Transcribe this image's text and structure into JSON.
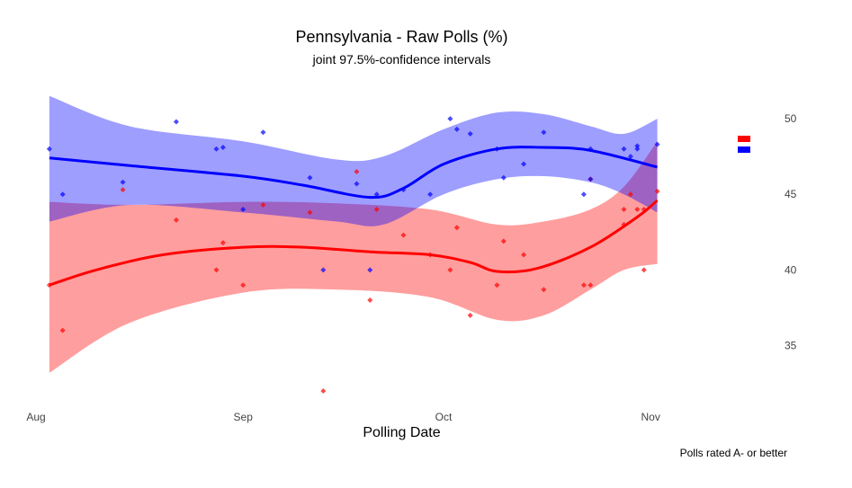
{
  "chart_data": {
    "type": "scatter",
    "title": "Pennsylvania - Raw Polls (%)",
    "subtitle": "joint 97.5%-confidence intervals",
    "xlabel": "Polling Date",
    "ylabel": "",
    "caption": "Polls rated A- or better",
    "x_ticks": [
      {
        "date": "2016-08-01",
        "label": "Aug"
      },
      {
        "date": "2016-09-01",
        "label": "Sep"
      },
      {
        "date": "2016-10-01",
        "label": "Oct"
      },
      {
        "date": "2016-11-01",
        "label": "Nov"
      }
    ],
    "xlim": [
      "2016-08-01",
      "2016-11-10"
    ],
    "y_ticks": [
      35,
      40,
      45,
      50
    ],
    "ylim": [
      32,
      52.5
    ],
    "grid": false,
    "legend_position": "right",
    "series": [
      {
        "color": "#ff0000",
        "band_color": "#ff0000",
        "points": [
          {
            "x": "2016-08-03",
            "y": 39.0
          },
          {
            "x": "2016-08-05",
            "y": 36.0
          },
          {
            "x": "2016-08-14",
            "y": 45.3
          },
          {
            "x": "2016-08-22",
            "y": 43.3
          },
          {
            "x": "2016-08-28",
            "y": 40.0
          },
          {
            "x": "2016-08-29",
            "y": 41.8
          },
          {
            "x": "2016-09-01",
            "y": 39.0
          },
          {
            "x": "2016-09-04",
            "y": 44.3
          },
          {
            "x": "2016-09-11",
            "y": 43.8
          },
          {
            "x": "2016-09-13",
            "y": 32.0
          },
          {
            "x": "2016-09-18",
            "y": 46.5
          },
          {
            "x": "2016-09-20",
            "y": 38.0
          },
          {
            "x": "2016-09-21",
            "y": 44.0
          },
          {
            "x": "2016-09-25",
            "y": 42.3
          },
          {
            "x": "2016-09-29",
            "y": 41.0
          },
          {
            "x": "2016-10-02",
            "y": 40.0
          },
          {
            "x": "2016-10-03",
            "y": 42.8
          },
          {
            "x": "2016-10-05",
            "y": 37.0
          },
          {
            "x": "2016-10-09",
            "y": 39.0
          },
          {
            "x": "2016-10-10",
            "y": 41.9
          },
          {
            "x": "2016-10-13",
            "y": 41.0
          },
          {
            "x": "2016-10-16",
            "y": 38.7
          },
          {
            "x": "2016-10-22",
            "y": 39.0
          },
          {
            "x": "2016-10-23",
            "y": 39.0
          },
          {
            "x": "2016-10-23",
            "y": 46.0
          },
          {
            "x": "2016-10-28",
            "y": 43.0
          },
          {
            "x": "2016-10-28",
            "y": 44.0
          },
          {
            "x": "2016-10-29",
            "y": 45.0
          },
          {
            "x": "2016-10-30",
            "y": 44.0
          },
          {
            "x": "2016-10-31",
            "y": 40.0
          },
          {
            "x": "2016-10-31",
            "y": 44.0
          },
          {
            "x": "2016-11-02",
            "y": 45.2
          }
        ],
        "trend": [
          {
            "x": "2016-08-03",
            "y": 39.0
          },
          {
            "x": "2016-08-10",
            "y": 40.0
          },
          {
            "x": "2016-08-20",
            "y": 41.0
          },
          {
            "x": "2016-09-01",
            "y": 41.5
          },
          {
            "x": "2016-09-10",
            "y": 41.5
          },
          {
            "x": "2016-09-20",
            "y": 41.2
          },
          {
            "x": "2016-09-29",
            "y": 41.0
          },
          {
            "x": "2016-10-05",
            "y": 40.5
          },
          {
            "x": "2016-10-09",
            "y": 39.9
          },
          {
            "x": "2016-10-15",
            "y": 40.1
          },
          {
            "x": "2016-10-23",
            "y": 41.5
          },
          {
            "x": "2016-10-30",
            "y": 43.5
          },
          {
            "x": "2016-11-02",
            "y": 44.6
          }
        ],
        "band_upper": [
          {
            "x": "2016-08-03",
            "y": 44.5
          },
          {
            "x": "2016-08-15",
            "y": 44.3
          },
          {
            "x": "2016-09-01",
            "y": 44.5
          },
          {
            "x": "2016-09-15",
            "y": 44.4
          },
          {
            "x": "2016-09-29",
            "y": 44.0
          },
          {
            "x": "2016-10-09",
            "y": 43.0
          },
          {
            "x": "2016-10-16",
            "y": 43.2
          },
          {
            "x": "2016-10-23",
            "y": 44.0
          },
          {
            "x": "2016-10-28",
            "y": 45.5
          },
          {
            "x": "2016-11-02",
            "y": 48.5
          }
        ],
        "band_lower": [
          {
            "x": "2016-08-03",
            "y": 33.2
          },
          {
            "x": "2016-08-15",
            "y": 36.5
          },
          {
            "x": "2016-09-01",
            "y": 38.5
          },
          {
            "x": "2016-09-15",
            "y": 38.7
          },
          {
            "x": "2016-09-29",
            "y": 38.2
          },
          {
            "x": "2016-10-09",
            "y": 36.7
          },
          {
            "x": "2016-10-16",
            "y": 37.0
          },
          {
            "x": "2016-10-23",
            "y": 38.7
          },
          {
            "x": "2016-10-28",
            "y": 40.0
          },
          {
            "x": "2016-11-02",
            "y": 40.4
          }
        ]
      },
      {
        "color": "#0000ff",
        "band_color": "#0000ff",
        "points": [
          {
            "x": "2016-08-03",
            "y": 48.0
          },
          {
            "x": "2016-08-05",
            "y": 45.0
          },
          {
            "x": "2016-08-14",
            "y": 45.8
          },
          {
            "x": "2016-08-22",
            "y": 49.8
          },
          {
            "x": "2016-08-28",
            "y": 48.0
          },
          {
            "x": "2016-08-29",
            "y": 48.1
          },
          {
            "x": "2016-09-01",
            "y": 44.0
          },
          {
            "x": "2016-09-04",
            "y": 49.1
          },
          {
            "x": "2016-09-11",
            "y": 46.1
          },
          {
            "x": "2016-09-13",
            "y": 40.0
          },
          {
            "x": "2016-09-18",
            "y": 45.7
          },
          {
            "x": "2016-09-20",
            "y": 40.0
          },
          {
            "x": "2016-09-21",
            "y": 45.0
          },
          {
            "x": "2016-09-25",
            "y": 45.3
          },
          {
            "x": "2016-09-29",
            "y": 45.0
          },
          {
            "x": "2016-10-02",
            "y": 50.0
          },
          {
            "x": "2016-10-03",
            "y": 49.3
          },
          {
            "x": "2016-10-05",
            "y": 49.0
          },
          {
            "x": "2016-10-09",
            "y": 48.0
          },
          {
            "x": "2016-10-10",
            "y": 46.1
          },
          {
            "x": "2016-10-13",
            "y": 47.0
          },
          {
            "x": "2016-10-16",
            "y": 49.1
          },
          {
            "x": "2016-10-22",
            "y": 45.0
          },
          {
            "x": "2016-10-23",
            "y": 48.0
          },
          {
            "x": "2016-10-23",
            "y": 46.0
          },
          {
            "x": "2016-10-28",
            "y": 48.0
          },
          {
            "x": "2016-10-29",
            "y": 47.5
          },
          {
            "x": "2016-10-30",
            "y": 48.0
          },
          {
            "x": "2016-10-30",
            "y": 48.2
          },
          {
            "x": "2016-11-02",
            "y": 48.3
          }
        ],
        "trend": [
          {
            "x": "2016-08-03",
            "y": 47.4
          },
          {
            "x": "2016-08-15",
            "y": 46.9
          },
          {
            "x": "2016-09-01",
            "y": 46.2
          },
          {
            "x": "2016-09-10",
            "y": 45.6
          },
          {
            "x": "2016-09-20",
            "y": 44.8
          },
          {
            "x": "2016-09-25",
            "y": 45.4
          },
          {
            "x": "2016-10-01",
            "y": 47.0
          },
          {
            "x": "2016-10-09",
            "y": 48.0
          },
          {
            "x": "2016-10-16",
            "y": 48.1
          },
          {
            "x": "2016-10-23",
            "y": 47.9
          },
          {
            "x": "2016-11-02",
            "y": 46.8
          }
        ],
        "band_upper": [
          {
            "x": "2016-08-03",
            "y": 51.5
          },
          {
            "x": "2016-08-15",
            "y": 49.5
          },
          {
            "x": "2016-09-01",
            "y": 48.5
          },
          {
            "x": "2016-09-15",
            "y": 47.3
          },
          {
            "x": "2016-09-22",
            "y": 47.5
          },
          {
            "x": "2016-10-01",
            "y": 49.3
          },
          {
            "x": "2016-10-09",
            "y": 50.4
          },
          {
            "x": "2016-10-16",
            "y": 50.3
          },
          {
            "x": "2016-10-23",
            "y": 49.5
          },
          {
            "x": "2016-10-28",
            "y": 49.0
          },
          {
            "x": "2016-11-02",
            "y": 50.0
          }
        ],
        "band_lower": [
          {
            "x": "2016-08-03",
            "y": 43.2
          },
          {
            "x": "2016-08-15",
            "y": 44.3
          },
          {
            "x": "2016-09-01",
            "y": 43.8
          },
          {
            "x": "2016-09-15",
            "y": 43.2
          },
          {
            "x": "2016-09-22",
            "y": 43.0
          },
          {
            "x": "2016-10-01",
            "y": 45.0
          },
          {
            "x": "2016-10-09",
            "y": 46.0
          },
          {
            "x": "2016-10-16",
            "y": 46.2
          },
          {
            "x": "2016-10-23",
            "y": 45.8
          },
          {
            "x": "2016-10-28",
            "y": 45.0
          },
          {
            "x": "2016-11-02",
            "y": 43.8
          }
        ]
      }
    ]
  }
}
